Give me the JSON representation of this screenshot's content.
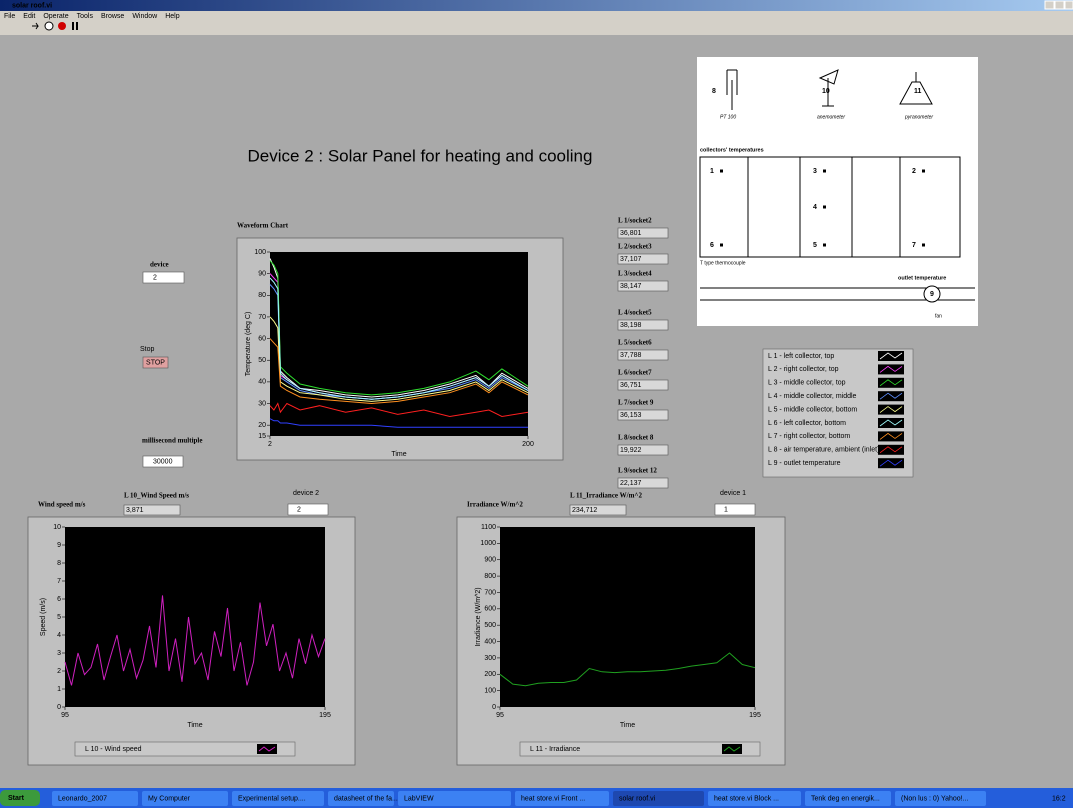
{
  "window": {
    "title": "solar roof.vi"
  },
  "menu": [
    "File",
    "Edit",
    "Operate",
    "Tools",
    "Browse",
    "Window",
    "Help"
  ],
  "heading": "Device 2 : Solar Panel for heating and cooling",
  "controls": {
    "device_label": "device",
    "device_value": "2",
    "stop_label": "Stop",
    "stop_button": "STOP",
    "ms_label": "millisecond multiple",
    "ms_value": "30000"
  },
  "indicators": [
    {
      "label": "L 1/socket2",
      "value": "36,801"
    },
    {
      "label": "L 2/socket3",
      "value": "37,107"
    },
    {
      "label": "L 3/socket4",
      "value": "38,147"
    },
    {
      "label": "L 4/socket5",
      "value": "38,198"
    },
    {
      "label": "L 5/socket6",
      "value": "37,788"
    },
    {
      "label": "L 6/socket7",
      "value": "36,751"
    },
    {
      "label": "L 7/socket 9",
      "value": "36,153"
    },
    {
      "label": "L 8/socket 8",
      "value": "19,922"
    },
    {
      "label": "L 9/socket 12",
      "value": "22,137"
    }
  ],
  "waveform": {
    "title": "Waveform Chart",
    "ylabel": "Temperature (deg C)",
    "xlabel": "Time",
    "xlim": [
      2,
      200
    ],
    "xticks": [
      2,
      200
    ],
    "ylim": [
      15,
      100
    ],
    "yticks": [
      15,
      20,
      30,
      40,
      50,
      60,
      70,
      80,
      90,
      100
    ],
    "x": [
      2,
      5,
      8,
      10,
      15,
      25,
      40,
      60,
      80,
      100,
      120,
      140,
      160,
      170,
      180,
      200
    ],
    "series": [
      {
        "name": "L 1 - left collector, top",
        "color": "#ffffff",
        "values": [
          97,
          93,
          88,
          45,
          42,
          37,
          36,
          34,
          33,
          34,
          36,
          39,
          43,
          38,
          44,
          37
        ]
      },
      {
        "name": "L 2 - right collector, top",
        "color": "#ff40ff",
        "values": [
          90,
          88,
          86,
          43,
          41,
          37,
          35,
          33,
          32,
          33,
          35,
          38,
          42,
          38,
          43,
          36
        ]
      },
      {
        "name": "L 3 - middle collector, top",
        "color": "#30e030",
        "values": [
          96,
          94,
          90,
          47,
          44,
          39,
          37,
          35,
          34,
          35,
          37,
          40,
          45,
          41,
          46,
          38
        ]
      },
      {
        "name": "L 4 - middle collector, middle",
        "color": "#6090ff",
        "values": [
          85,
          83,
          80,
          42,
          40,
          36,
          34,
          33,
          32,
          33,
          35,
          37,
          41,
          37,
          42,
          36
        ]
      },
      {
        "name": "L 5 - middle collector, bottom",
        "color": "#ffff90",
        "values": [
          70,
          68,
          65,
          40,
          38,
          35,
          34,
          32,
          31,
          32,
          34,
          36,
          40,
          36,
          41,
          35
        ]
      },
      {
        "name": "L 6 - left collector, bottom",
        "color": "#a0ffff",
        "values": [
          88,
          86,
          83,
          44,
          41,
          37,
          35,
          33,
          32,
          33,
          35,
          38,
          42,
          38,
          43,
          36
        ]
      },
      {
        "name": "L 7 - right collector, bottom",
        "color": "#ff9020",
        "values": [
          60,
          58,
          56,
          38,
          36,
          33,
          32,
          31,
          30,
          31,
          33,
          35,
          39,
          35,
          40,
          34
        ]
      },
      {
        "name": "L 8 - air temperature, ambient (inlet)",
        "color": "#ff2020",
        "values": [
          29,
          27,
          30,
          26,
          30,
          27,
          29,
          26,
          28,
          25,
          27,
          24,
          26,
          27,
          24,
          26
        ]
      },
      {
        "name": "L 9 - outlet temperature",
        "color": "#3040ff",
        "values": [
          23,
          22,
          22,
          21,
          21,
          20,
          20,
          20,
          20,
          19,
          19,
          19,
          19,
          19,
          19,
          19
        ]
      }
    ]
  },
  "wind": {
    "label": "Wind speed m/s",
    "indicator_label": "L 10_Wind Speed m/s",
    "indicator_value": "3,871",
    "device_label": "device 2",
    "device_value": "2",
    "ylabel": "Speed (m/s)",
    "xlabel": "Time",
    "xlim": [
      95,
      195
    ],
    "xticks": [
      95,
      195
    ],
    "ylim": [
      0,
      10
    ],
    "yticks": [
      0,
      1,
      2,
      3,
      4,
      5,
      6,
      7,
      8,
      9,
      10
    ],
    "x": [
      95,
      97.5,
      100,
      102.5,
      105,
      107.5,
      110,
      112.5,
      115,
      117.5,
      120,
      122.5,
      125,
      127.5,
      130,
      132.5,
      135,
      137.5,
      140,
      142.5,
      145,
      147.5,
      150,
      152.5,
      155,
      157.5,
      160,
      162.5,
      165,
      167.5,
      170,
      172.5,
      175,
      177.5,
      180,
      182.5,
      185,
      187.5,
      190,
      192.5,
      195
    ],
    "series": [
      {
        "name": "L 10 - Wind speed",
        "color": "#d020c0",
        "values": [
          2.5,
          1.2,
          3.0,
          1.8,
          2.2,
          3.5,
          1.5,
          2.8,
          4.0,
          2.0,
          3.2,
          1.6,
          2.6,
          4.5,
          2.2,
          6.2,
          2.0,
          3.8,
          1.4,
          5.0,
          2.4,
          3.0,
          1.5,
          4.2,
          2.8,
          5.5,
          2.0,
          3.6,
          1.2,
          2.5,
          5.8,
          3.4,
          4.6,
          2.0,
          3.0,
          1.6,
          3.8,
          2.4,
          4.0,
          2.8,
          3.8
        ]
      }
    ]
  },
  "irradiance": {
    "label": "Irradiance W/m^2",
    "indicator_label": "L 11_Irradiance W/m^2",
    "indicator_value": "234,712",
    "device_label": "device 1",
    "device_value": "1",
    "ylabel": "Irradiance (W/m^2)",
    "xlabel": "Time",
    "xlim": [
      95,
      195
    ],
    "xticks": [
      95,
      195
    ],
    "ylim": [
      0,
      1100
    ],
    "yticks": [
      0,
      100,
      200,
      300,
      400,
      500,
      600,
      700,
      800,
      900,
      1000,
      1100
    ],
    "x": [
      95,
      100,
      105,
      110,
      115,
      120,
      125,
      130,
      135,
      140,
      145,
      150,
      155,
      160,
      165,
      170,
      175,
      180,
      185,
      190,
      195
    ],
    "series": [
      {
        "name": "L 11 - Irradiance",
        "color": "#20a020",
        "values": [
          200,
          140,
          130,
          145,
          150,
          150,
          165,
          235,
          215,
          210,
          215,
          215,
          220,
          225,
          235,
          250,
          260,
          270,
          330,
          260,
          240
        ]
      }
    ]
  },
  "diagram": {
    "sensors": [
      {
        "number": "8",
        "label": "PT 100"
      },
      {
        "number": "10",
        "label": "anemometer"
      },
      {
        "number": "11",
        "label": "pyranometer"
      }
    ],
    "collectors_title": "collectors' temperatures",
    "points": [
      "1",
      "3",
      "2",
      "4",
      "6",
      "5",
      "7"
    ],
    "thermocouple": "T type thermocouple",
    "outlet_title": "outlet temperature",
    "outlet_number": "9",
    "fan": "fan"
  },
  "taskbar": {
    "start": "Start",
    "items": [
      "Leonardo_2007",
      "My Computer",
      "Experimental setup....",
      "datasheet of the fa...",
      "LabVIEW",
      "heat store.vi Front ...",
      "solar roof.vi",
      "heat store.vi Block ...",
      "Tenk deg en energik...",
      "(Non lus : 0) Yahoo!..."
    ],
    "clock": "16:2"
  }
}
